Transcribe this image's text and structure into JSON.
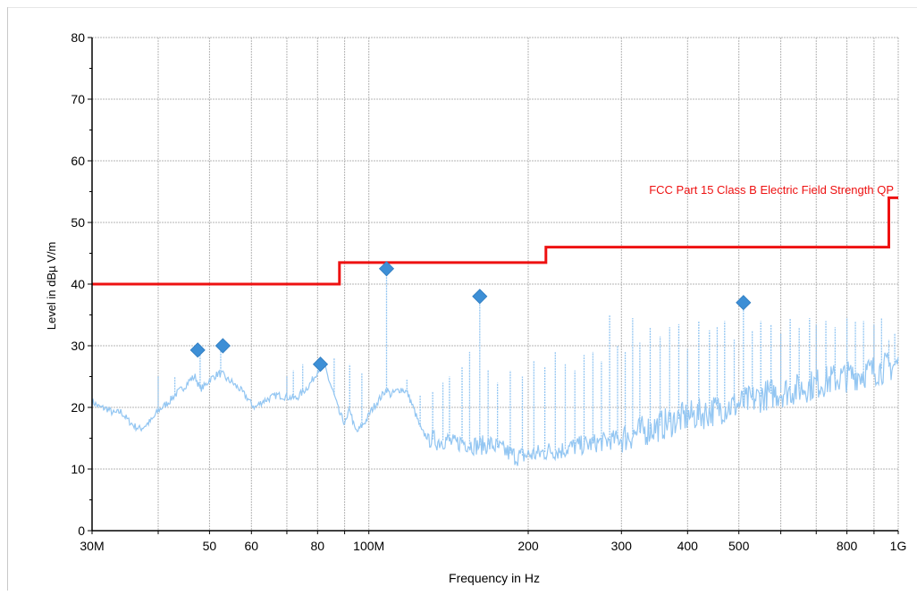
{
  "chart_data": {
    "type": "line",
    "xscale": "log",
    "xlim": [
      30000000,
      1000000000
    ],
    "ylim": [
      0,
      80
    ],
    "xlabel": "Frequency in Hz",
    "ylabel": "Level in dBµ V/m",
    "grid": true,
    "x_ticks": [
      {
        "value": 30000000,
        "label": "30M"
      },
      {
        "value": 50000000,
        "label": "50"
      },
      {
        "value": 60000000,
        "label": "60"
      },
      {
        "value": 80000000,
        "label": "80"
      },
      {
        "value": 100000000,
        "label": "100M"
      },
      {
        "value": 200000000,
        "label": "200"
      },
      {
        "value": 300000000,
        "label": "300"
      },
      {
        "value": 400000000,
        "label": "400"
      },
      {
        "value": 500000000,
        "label": "500"
      },
      {
        "value": 800000000,
        "label": "800"
      },
      {
        "value": 1000000000,
        "label": "1G"
      }
    ],
    "y_ticks": [
      0,
      10,
      20,
      30,
      40,
      50,
      60,
      70,
      80
    ],
    "limit_line": {
      "name": "FCC Part 15 Class B Electric Field Strength QP",
      "color": "#ee1111",
      "points": [
        [
          30000000,
          40
        ],
        [
          88000000,
          40
        ],
        [
          88000000,
          43.5
        ],
        [
          216000000,
          43.5
        ],
        [
          216000000,
          46
        ],
        [
          960000000,
          46
        ],
        [
          960000000,
          54
        ],
        [
          1000000000,
          54
        ]
      ]
    },
    "trace": {
      "color": "#93c6f2",
      "points": [
        [
          30000000,
          21.0
        ],
        [
          31000000,
          20.0
        ],
        [
          32000000,
          19.8
        ],
        [
          33000000,
          19.0
        ],
        [
          34000000,
          19.3
        ],
        [
          35000000,
          18.0
        ],
        [
          36000000,
          17.0
        ],
        [
          37000000,
          16.5
        ],
        [
          38000000,
          17.2
        ],
        [
          39000000,
          18.0
        ],
        [
          40000000,
          19.5
        ],
        [
          41000000,
          20.2
        ],
        [
          42000000,
          21.0
        ],
        [
          43000000,
          22.0
        ],
        [
          45000000,
          23.5
        ],
        [
          46000000,
          24.5
        ],
        [
          47000000,
          25.0
        ],
        [
          48000000,
          23.0
        ],
        [
          49000000,
          23.5
        ],
        [
          50000000,
          24.5
        ],
        [
          51000000,
          25.0
        ],
        [
          52000000,
          25.5
        ],
        [
          53000000,
          25.3
        ],
        [
          54000000,
          24.5
        ],
        [
          55000000,
          24.2
        ],
        [
          56000000,
          23.5
        ],
        [
          57000000,
          23.0
        ],
        [
          58000000,
          22.2
        ],
        [
          59000000,
          21.5
        ],
        [
          60000000,
          20.5
        ],
        [
          61000000,
          20.0
        ],
        [
          62000000,
          20.5
        ],
        [
          63000000,
          21.0
        ],
        [
          65000000,
          21.5
        ],
        [
          67000000,
          22.0
        ],
        [
          69000000,
          21.8
        ],
        [
          71000000,
          21.6
        ],
        [
          73000000,
          21.5
        ],
        [
          75000000,
          22.5
        ],
        [
          77000000,
          23.5
        ],
        [
          79000000,
          25.0
        ],
        [
          80000000,
          26.0
        ],
        [
          81000000,
          26.5
        ],
        [
          82000000,
          27.0
        ],
        [
          83000000,
          26.0
        ],
        [
          84000000,
          24.5
        ],
        [
          86000000,
          22.0
        ],
        [
          88000000,
          19.0
        ],
        [
          90000000,
          17.5
        ],
        [
          91000000,
          18.0
        ],
        [
          92000000,
          20.0
        ],
        [
          94000000,
          16.5
        ],
        [
          95000000,
          16.0
        ],
        [
          96000000,
          16.5
        ],
        [
          97000000,
          17.0
        ],
        [
          99000000,
          18.0
        ],
        [
          101000000,
          19.5
        ],
        [
          104000000,
          21.0
        ],
        [
          106000000,
          22.0
        ],
        [
          108000000,
          23.0
        ],
        [
          110000000,
          22.0
        ],
        [
          112000000,
          22.5
        ],
        [
          115000000,
          23.0
        ],
        [
          118000000,
          22.5
        ],
        [
          120000000,
          21.0
        ],
        [
          123000000,
          18.5
        ],
        [
          126000000,
          16.0
        ],
        [
          130000000,
          15.0
        ],
        [
          135000000,
          14.5
        ],
        [
          140000000,
          14.8
        ],
        [
          145000000,
          14.0
        ],
        [
          150000000,
          14.5
        ],
        [
          155000000,
          14.0
        ],
        [
          160000000,
          13.8
        ],
        [
          170000000,
          14.0
        ],
        [
          175000000,
          13.5
        ],
        [
          180000000,
          13.0
        ],
        [
          185000000,
          12.5
        ],
        [
          190000000,
          12.0
        ],
        [
          200000000,
          12.3
        ],
        [
          210000000,
          12.5
        ],
        [
          220000000,
          13.0
        ],
        [
          230000000,
          13.0
        ],
        [
          240000000,
          13.5
        ],
        [
          250000000,
          13.8
        ],
        [
          260000000,
          14.0
        ],
        [
          280000000,
          14.5
        ],
        [
          300000000,
          15.0
        ],
        [
          320000000,
          15.8
        ],
        [
          340000000,
          16.5
        ],
        [
          360000000,
          17.2
        ],
        [
          380000000,
          18.0
        ],
        [
          400000000,
          18.5
        ],
        [
          430000000,
          19.0
        ],
        [
          460000000,
          19.8
        ],
        [
          500000000,
          20.5
        ],
        [
          530000000,
          21.2
        ],
        [
          560000000,
          22.0
        ],
        [
          600000000,
          22.5
        ],
        [
          650000000,
          23.0
        ],
        [
          700000000,
          23.8
        ],
        [
          750000000,
          24.5
        ],
        [
          800000000,
          25.0
        ],
        [
          850000000,
          25.5
        ],
        [
          900000000,
          26.0
        ],
        [
          950000000,
          26.5
        ],
        [
          1000000000,
          27.0
        ]
      ],
      "spikes": [
        [
          40000000,
          25.0
        ],
        [
          43000000,
          25.0
        ],
        [
          48000000,
          29.0
        ],
        [
          52500000,
          29.5
        ],
        [
          70000000,
          25.0
        ],
        [
          72000000,
          26.0
        ],
        [
          75000000,
          27.0
        ],
        [
          81500000,
          27.0
        ],
        [
          86000000,
          28.0
        ],
        [
          92000000,
          27.0
        ],
        [
          97000000,
          25.5
        ],
        [
          108000000,
          42.5
        ],
        [
          118000000,
          24.5
        ],
        [
          125000000,
          22.0
        ],
        [
          132000000,
          22.5
        ],
        [
          138000000,
          24.0
        ],
        [
          142000000,
          25.0
        ],
        [
          150000000,
          26.5
        ],
        [
          155000000,
          29.0
        ],
        [
          162000000,
          37.5
        ],
        [
          168000000,
          26.0
        ],
        [
          175000000,
          24.0
        ],
        [
          185000000,
          26.0
        ],
        [
          195000000,
          25.0
        ],
        [
          205000000,
          27.5
        ],
        [
          215000000,
          26.5
        ],
        [
          225000000,
          29.0
        ],
        [
          235000000,
          27.0
        ],
        [
          245000000,
          26.0
        ],
        [
          255000000,
          28.5
        ],
        [
          265000000,
          29.0
        ],
        [
          275000000,
          27.5
        ],
        [
          285000000,
          35.0
        ],
        [
          295000000,
          30.0
        ],
        [
          305000000,
          29.0
        ],
        [
          315000000,
          34.5
        ],
        [
          325000000,
          30.5
        ],
        [
          340000000,
          33.0
        ],
        [
          355000000,
          31.5
        ],
        [
          370000000,
          33.0
        ],
        [
          385000000,
          33.5
        ],
        [
          400000000,
          29.5
        ],
        [
          420000000,
          34.0
        ],
        [
          440000000,
          32.5
        ],
        [
          455000000,
          33.0
        ],
        [
          470000000,
          34.0
        ],
        [
          490000000,
          31.0
        ],
        [
          510000000,
          36.5
        ],
        [
          530000000,
          32.5
        ],
        [
          550000000,
          34.0
        ],
        [
          575000000,
          33.5
        ],
        [
          600000000,
          32.0
        ],
        [
          625000000,
          34.5
        ],
        [
          650000000,
          33.0
        ],
        [
          680000000,
          34.5
        ],
        [
          700000000,
          33.5
        ],
        [
          730000000,
          34.0
        ],
        [
          760000000,
          33.0
        ],
        [
          800000000,
          34.5
        ],
        [
          830000000,
          34.0
        ],
        [
          860000000,
          34.0
        ],
        [
          900000000,
          33.5
        ],
        [
          930000000,
          34.5
        ],
        [
          960000000,
          31.0
        ],
        [
          985000000,
          32.0
        ]
      ]
    },
    "markers": {
      "color": "#3d8fd6",
      "points": [
        [
          47500000,
          29.3
        ],
        [
          53000000,
          30.0
        ],
        [
          81000000,
          27.0
        ],
        [
          108000000,
          42.5
        ],
        [
          162000000,
          38.0
        ],
        [
          510000000,
          37.0
        ]
      ]
    }
  }
}
